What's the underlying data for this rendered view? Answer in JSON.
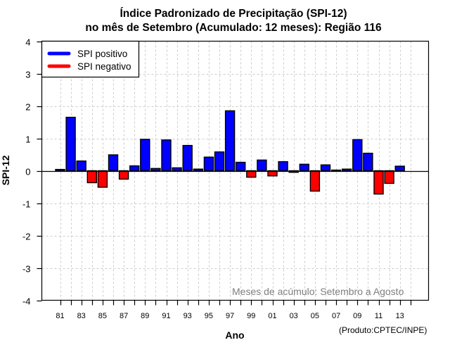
{
  "chart_data": {
    "type": "bar",
    "title": "Índice Padronizado de Precipitação (SPI-12)",
    "subtitle": "no mês de Setembro (Acumulado: 12 meses): Região 116",
    "xlabel": "Ano",
    "ylabel": "SPI-12",
    "ylim": [
      -4,
      4
    ],
    "yticks": [
      -4,
      -3,
      -2,
      -1,
      0,
      1,
      2,
      3,
      4
    ],
    "grid": true,
    "categories": [
      "81",
      "82",
      "83",
      "84",
      "85",
      "86",
      "87",
      "88",
      "89",
      "90",
      "91",
      "92",
      "93",
      "94",
      "95",
      "96",
      "97",
      "98",
      "99",
      "00",
      "01",
      "02",
      "03",
      "04",
      "05",
      "06",
      "07",
      "08",
      "09",
      "10",
      "11",
      "12",
      "13"
    ],
    "xtick_labels": [
      "81",
      "83",
      "85",
      "87",
      "89",
      "91",
      "93",
      "95",
      "97",
      "99",
      "01",
      "03",
      "05",
      "07",
      "09",
      "11",
      "13"
    ],
    "values": [
      0.04,
      1.65,
      0.3,
      -0.37,
      -0.51,
      0.49,
      -0.26,
      0.15,
      0.97,
      0.07,
      0.95,
      0.09,
      0.78,
      0.05,
      0.42,
      0.58,
      1.85,
      0.26,
      -0.2,
      0.33,
      -0.16,
      0.28,
      -0.05,
      0.2,
      -0.63,
      0.18,
      0.02,
      0.05,
      0.96,
      0.54,
      -0.72,
      -0.39,
      0.14
    ],
    "legend": {
      "placement": "top-left",
      "entries": [
        {
          "label": "SPI positivo",
          "color": "#0000ff"
        },
        {
          "label": "SPI negativo",
          "color": "#ff0000"
        }
      ]
    },
    "annotation": "Meses de acúmulo: Setembro a Agosto",
    "credit": "(Produto:CPTEC/INPE)",
    "colors": {
      "positive": "#0000ff",
      "negative": "#ff0000",
      "grid": "#cccccc",
      "annotation": "#7f7f7f"
    }
  }
}
